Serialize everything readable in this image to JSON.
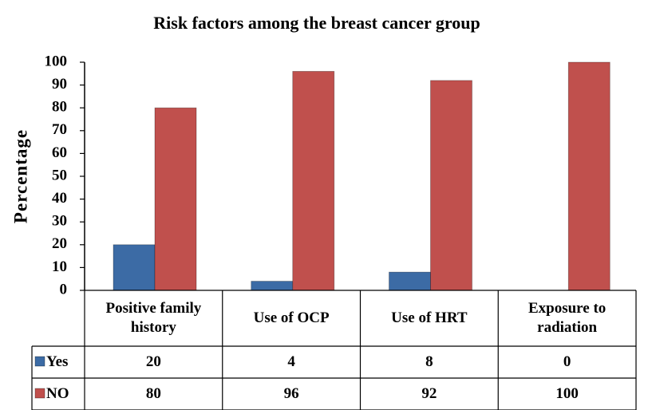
{
  "chart_data": {
    "type": "bar",
    "title": "Risk factors among the breast cancer group",
    "y_label": "Percentage",
    "categories": [
      "Positive family history",
      "Use of OCP",
      "Use of HRT",
      "Exposure to radiation"
    ],
    "series": [
      {
        "name": "Yes",
        "color": "#3c6ba5",
        "values": [
          20,
          4,
          8,
          0
        ]
      },
      {
        "name": "NO",
        "color": "#c0504d",
        "values": [
          80,
          96,
          92,
          100
        ]
      }
    ],
    "ylim": [
      0,
      100
    ],
    "yticks": [
      0,
      10,
      20,
      30,
      40,
      50,
      60,
      70,
      80,
      90,
      100
    ],
    "grid": false
  }
}
